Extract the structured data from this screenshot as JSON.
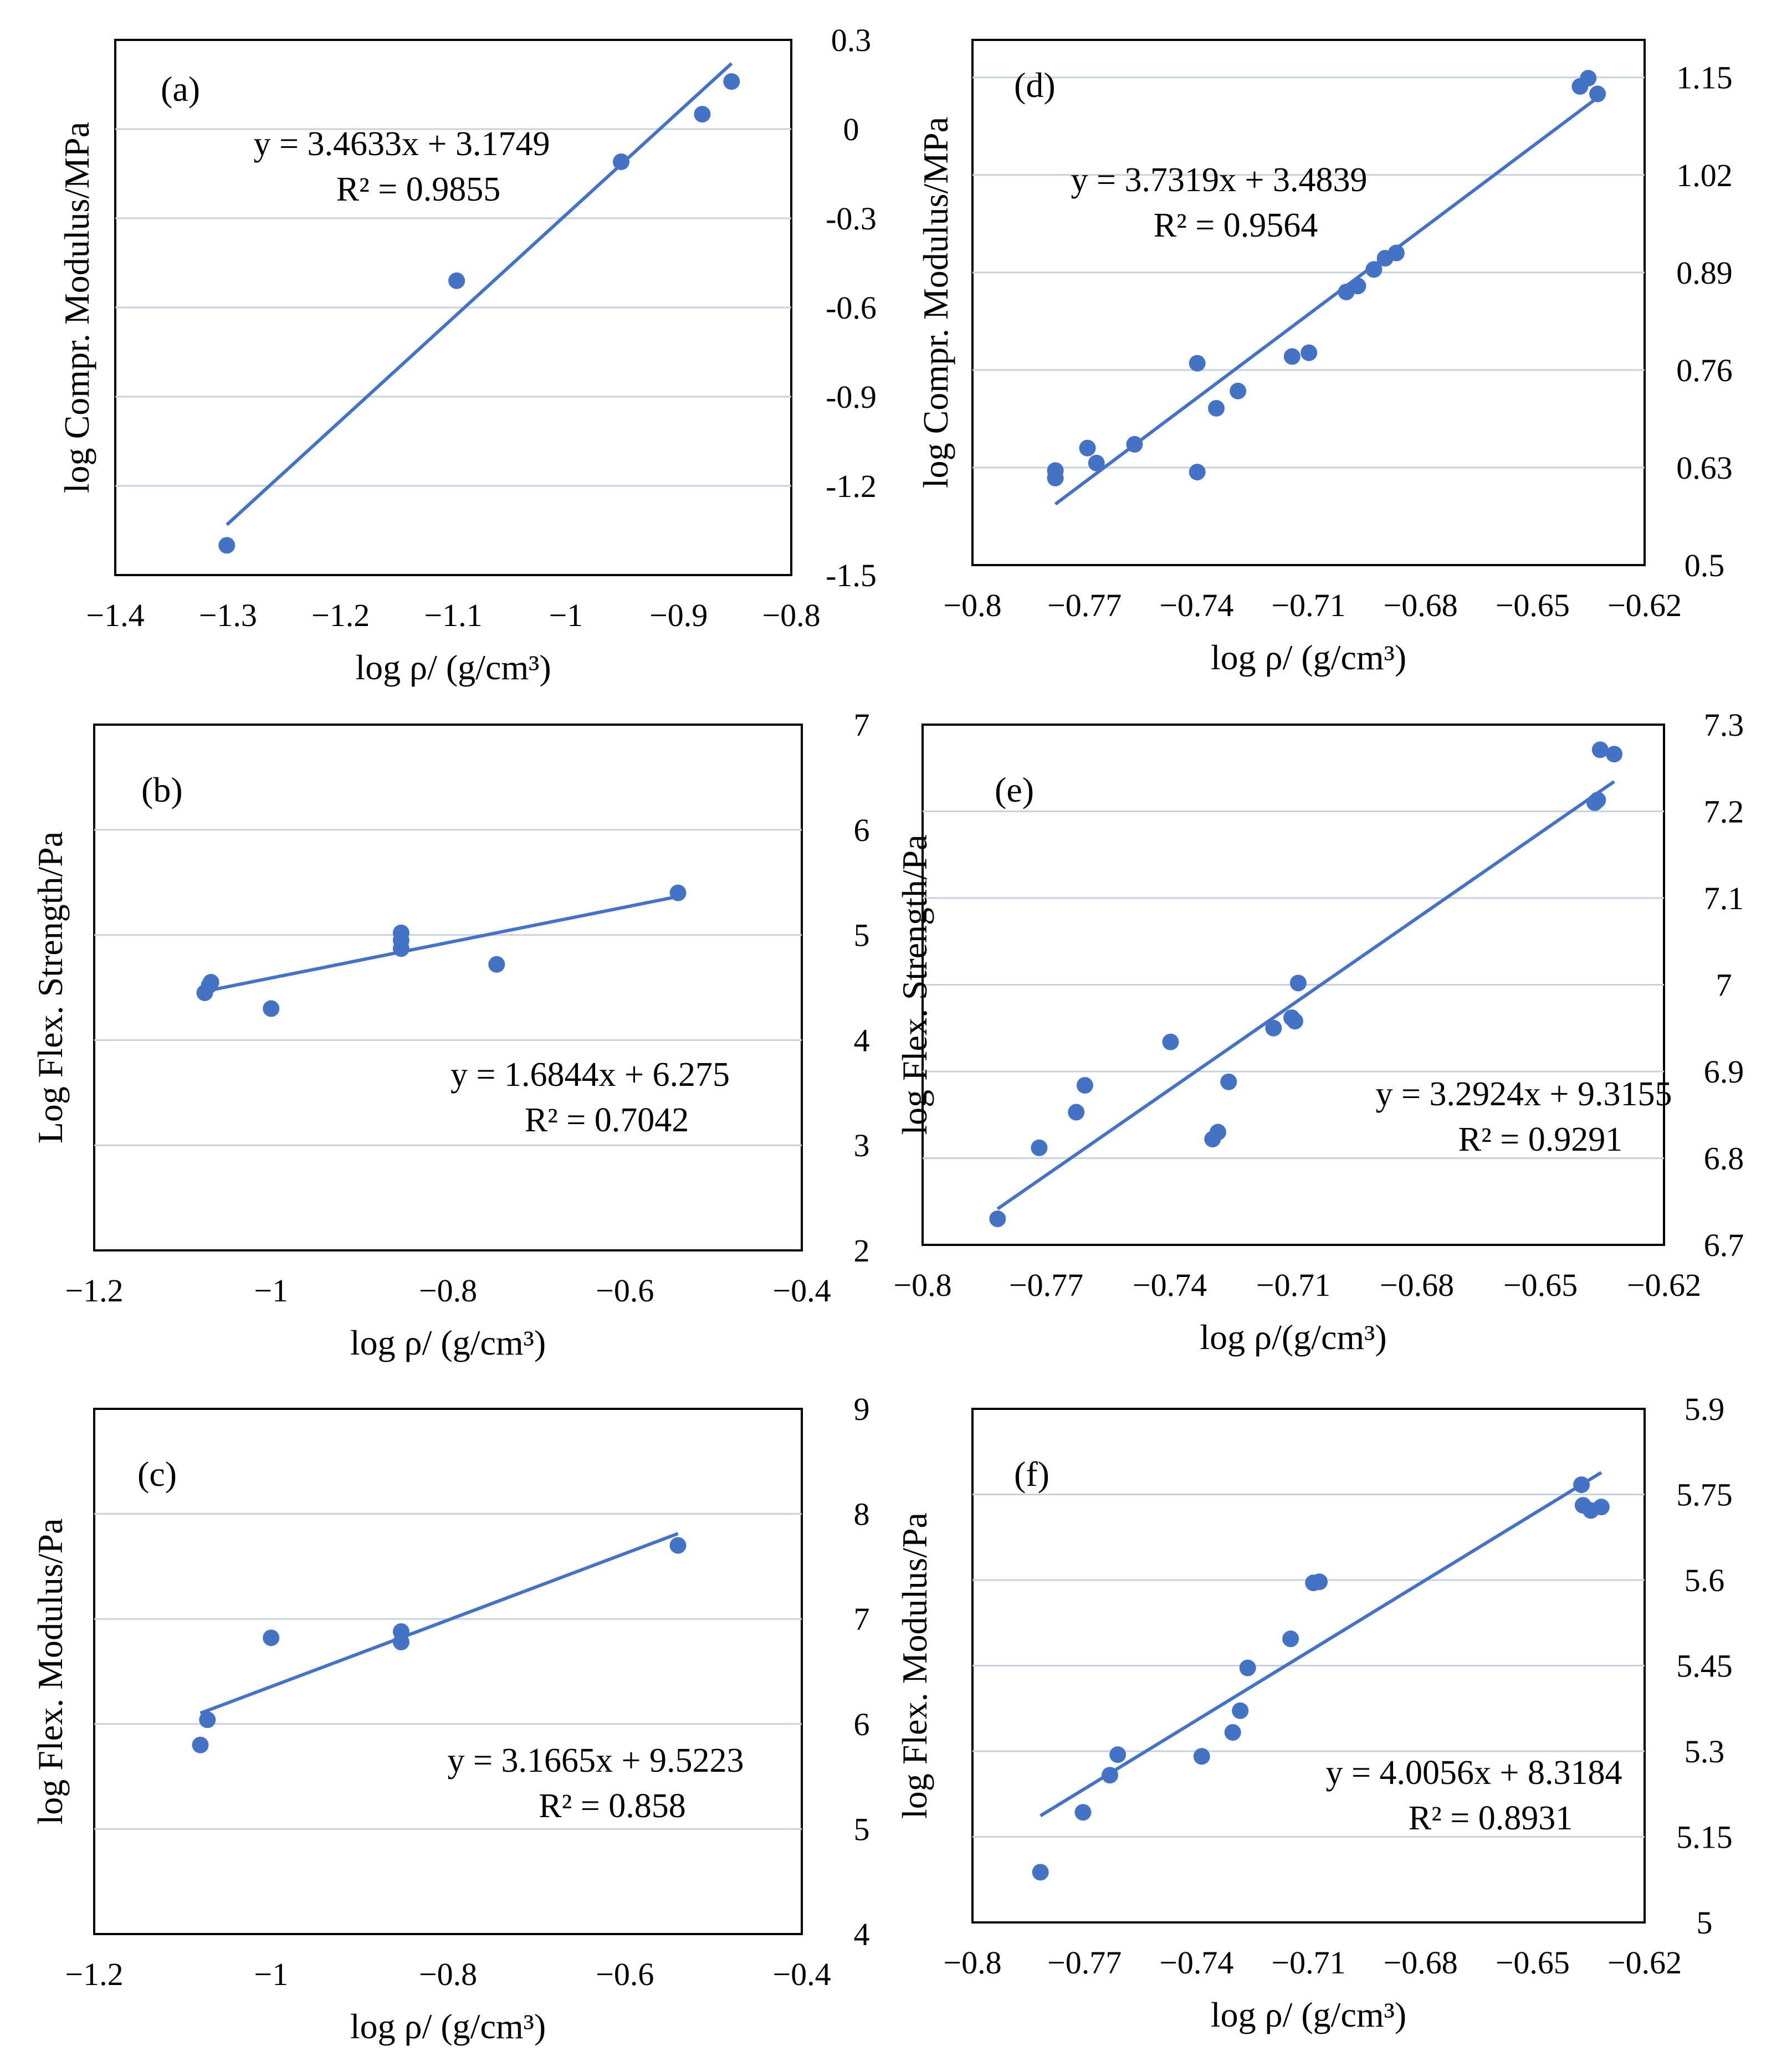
{
  "chart_data": [
    {
      "panel": "(a)",
      "type": "scatter",
      "ylabel": "log Compr. Modulus/MPa",
      "xlabel": "log ρ/ (g/cm³)",
      "xlim": [
        -1.4,
        -0.8
      ],
      "xticks": [
        "−1.4",
        "−1.3",
        "−1.2",
        "−1.1",
        "−1",
        "−0.9",
        "−0.8"
      ],
      "ylim": [
        -1.5,
        0.3
      ],
      "yticks": [
        "-1.5",
        "-1.2",
        "-0.9",
        "-0.6",
        "-0.3",
        "0",
        "0.3"
      ],
      "y_axis_side": "right",
      "points": [
        [
          -1.301,
          -1.4
        ],
        [
          -1.097,
          -0.51
        ],
        [
          -0.951,
          -0.11
        ],
        [
          -0.879,
          0.05
        ],
        [
          -0.853,
          0.16
        ]
      ],
      "trendline": {
        "slope": 3.4633,
        "intercept": 3.1749,
        "x_range": [
          -1.301,
          -0.853
        ]
      },
      "equation": "y = 3.4633x + 3.1749",
      "r2": "R² = 0.9855",
      "equation_position": "upper-left"
    },
    {
      "panel": "(b)",
      "type": "scatter",
      "ylabel": "Log Flex. Strength/Pa",
      "xlabel": "log ρ/ (g/cm³)",
      "xlim": [
        -1.2,
        -0.4
      ],
      "xticks": [
        "−1.2",
        "−1",
        "−0.8",
        "−0.6",
        "−0.4"
      ],
      "ylim": [
        2,
        7
      ],
      "yticks": [
        "2",
        "3",
        "4",
        "5",
        "6",
        "7"
      ],
      "y_axis_side": "right",
      "points": [
        [
          -1.075,
          4.45
        ],
        [
          -1.07,
          4.52
        ],
        [
          -1.068,
          4.55
        ],
        [
          -1.0,
          4.3
        ],
        [
          -0.853,
          5.02
        ],
        [
          -0.853,
          4.95
        ],
        [
          -0.853,
          4.87
        ],
        [
          -0.745,
          4.72
        ],
        [
          -0.54,
          5.4
        ]
      ],
      "trendline": {
        "slope": 1.6844,
        "intercept": 6.275,
        "x_range": [
          -1.075,
          -0.54
        ]
      },
      "equation": "y = 1.6844x + 6.275",
      "r2": "R² = 0.7042",
      "equation_position": "center-right"
    },
    {
      "panel": "(c)",
      "type": "scatter",
      "ylabel": "log Flex. Modulus/Pa",
      "xlabel": "log ρ/ (g/cm³)",
      "xlim": [
        -1.2,
        -0.4
      ],
      "xticks": [
        "−1.2",
        "−1",
        "−0.8",
        "−0.6",
        "−0.4"
      ],
      "ylim": [
        4,
        9
      ],
      "yticks": [
        "4",
        "5",
        "6",
        "7",
        "8",
        "9"
      ],
      "y_axis_side": "right",
      "points": [
        [
          -1.08,
          5.8
        ],
        [
          -1.072,
          6.04
        ],
        [
          -1.0,
          6.82
        ],
        [
          -0.853,
          6.88
        ],
        [
          -0.853,
          6.78
        ],
        [
          -0.54,
          7.7
        ]
      ],
      "trendline": {
        "slope": 3.1665,
        "intercept": 9.5223,
        "x_range": [
          -1.08,
          -0.54
        ]
      },
      "equation": "y = 3.1665x + 9.5223",
      "r2": "R² = 0.858",
      "equation_position": "center-right"
    },
    {
      "panel": "(d)",
      "type": "scatter",
      "ylabel": "log Compr. Modulus/MPa",
      "xlabel": "log ρ/ (g/cm³)",
      "xlim": [
        -0.8,
        -0.62
      ],
      "xticks": [
        "−0.8",
        "−0.77",
        "−0.74",
        "−0.71",
        "−0.68",
        "−0.65",
        "−0.62"
      ],
      "ylim": [
        0.5,
        1.2
      ],
      "yticks": [
        "0.5",
        "0.63",
        "0.76",
        "0.89",
        "1.02",
        "1.15"
      ],
      "y_axis_side": "right",
      "points": [
        [
          -0.7778,
          0.616
        ],
        [
          -0.7778,
          0.626
        ],
        [
          -0.7692,
          0.656
        ],
        [
          -0.7668,
          0.636
        ],
        [
          -0.7566,
          0.661
        ],
        [
          -0.7398,
          0.769
        ],
        [
          -0.7398,
          0.624
        ],
        [
          -0.7347,
          0.709
        ],
        [
          -0.7289,
          0.732
        ],
        [
          -0.7144,
          0.778
        ],
        [
          -0.7099,
          0.783
        ],
        [
          -0.6999,
          0.864
        ],
        [
          -0.6968,
          0.872
        ],
        [
          -0.6925,
          0.894
        ],
        [
          -0.6895,
          0.909
        ],
        [
          -0.6865,
          0.916
        ],
        [
          -0.6373,
          1.138
        ],
        [
          -0.6351,
          1.149
        ],
        [
          -0.6326,
          1.128
        ]
      ],
      "trendline": {
        "slope": 3.7319,
        "intercept": 3.4839,
        "x_range": [
          -0.7778,
          -0.6326
        ]
      },
      "equation": "y = 3.7319x + 3.4839",
      "r2": "R² = 0.9564",
      "equation_position": "upper-left"
    },
    {
      "panel": "(e)",
      "type": "scatter",
      "ylabel": "log Flex. Strength/Pa",
      "xlabel": "log ρ/(g/cm³)",
      "xlim": [
        -0.8,
        -0.62
      ],
      "xticks": [
        "−0.8",
        "−0.77",
        "−0.74",
        "−0.71",
        "−0.68",
        "−0.65",
        "−0.62"
      ],
      "ylim": [
        6.7,
        7.3
      ],
      "yticks": [
        "6.7",
        "6.8",
        "6.9",
        "7",
        "7.1",
        "7.2",
        "7.3"
      ],
      "y_axis_side": "right",
      "points": [
        [
          -0.7818,
          6.73
        ],
        [
          -0.7717,
          6.812
        ],
        [
          -0.7627,
          6.853
        ],
        [
          -0.7606,
          6.884
        ],
        [
          -0.7398,
          6.934
        ],
        [
          -0.7296,
          6.822
        ],
        [
          -0.7283,
          6.83
        ],
        [
          -0.7257,
          6.888
        ],
        [
          -0.7148,
          6.95
        ],
        [
          -0.7104,
          6.962
        ],
        [
          -0.7096,
          6.958
        ],
        [
          -0.7088,
          7.002
        ],
        [
          -0.6368,
          7.21
        ],
        [
          -0.6361,
          7.213
        ],
        [
          -0.6355,
          7.271
        ],
        [
          -0.6321,
          7.266
        ]
      ],
      "trendline": {
        "slope": 3.2924,
        "intercept": 9.3155,
        "x_range": [
          -0.7818,
          -0.6321
        ]
      },
      "equation": "y = 3.2924x + 9.3155",
      "r2": "R² = 0.9291",
      "equation_position": "center-right"
    },
    {
      "panel": "(f)",
      "type": "scatter",
      "ylabel": "log Flex. Modulus/Pa",
      "xlabel": "log ρ/ (g/cm³)",
      "xlim": [
        -0.8,
        -0.62
      ],
      "xticks": [
        "−0.8",
        "−0.77",
        "−0.74",
        "−0.71",
        "−0.68",
        "−0.65",
        "−0.62"
      ],
      "ylim": [
        5.0,
        5.9
      ],
      "yticks": [
        "5",
        "5.15",
        "5.3",
        "5.45",
        "5.6",
        "5.75",
        "5.9"
      ],
      "y_axis_side": "right",
      "points": [
        [
          -0.7818,
          5.088
        ],
        [
          -0.7704,
          5.193
        ],
        [
          -0.7632,
          5.258
        ],
        [
          -0.7611,
          5.294
        ],
        [
          -0.7386,
          5.291
        ],
        [
          -0.7303,
          5.333
        ],
        [
          -0.7283,
          5.371
        ],
        [
          -0.7263,
          5.446
        ],
        [
          -0.7148,
          5.497
        ],
        [
          -0.7087,
          5.595
        ],
        [
          -0.7071,
          5.597
        ],
        [
          -0.6369,
          5.767
        ],
        [
          -0.6365,
          5.731
        ],
        [
          -0.6344,
          5.722
        ],
        [
          -0.6316,
          5.728
        ]
      ],
      "trendline": {
        "slope": 4.0056,
        "intercept": 8.3184,
        "x_range": [
          -0.7818,
          -0.6316
        ]
      },
      "equation": "y = 4.0056x + 8.3184",
      "r2": "R² = 0.8931",
      "equation_position": "center-right"
    }
  ],
  "colors": {
    "marker": "#4472C4",
    "trendline": "#4472C4",
    "gridline": "#C9D1DE",
    "frame": "#000000"
  }
}
